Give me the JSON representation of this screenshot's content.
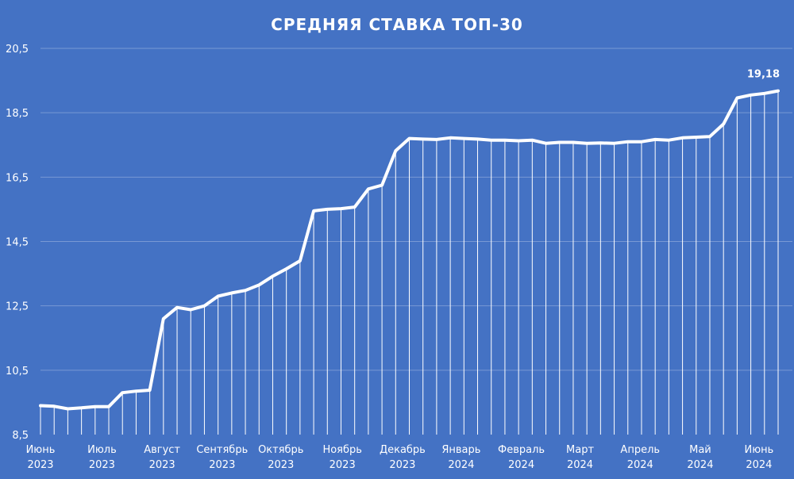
{
  "colors": {
    "background": "#4472C4",
    "line": "#FFFFFF"
  },
  "chart_data": {
    "type": "line",
    "title": "СРЕДНЯЯ СТАВКА ТОП-30",
    "xlabel": "",
    "ylabel": "",
    "ylim": [
      8.5,
      20.5
    ],
    "yticks": [
      "8,5",
      "10,5",
      "12,5",
      "14,5",
      "16,5",
      "18,5",
      "20,5"
    ],
    "ytick_values": [
      8.5,
      10.5,
      12.5,
      14.5,
      16.5,
      18.5,
      20.5
    ],
    "grid": true,
    "legend": "none",
    "x_month_labels": [
      {
        "month": "Июнь",
        "year": "2023",
        "index": 0
      },
      {
        "month": "Июль",
        "year": "2023",
        "index": 4.5
      },
      {
        "month": "Август",
        "year": "2023",
        "index": 8.9
      },
      {
        "month": "Сентябрь",
        "year": "2023",
        "index": 13.3
      },
      {
        "month": "Октябрь",
        "year": "2023",
        "index": 17.6
      },
      {
        "month": "Ноябрь",
        "year": "2023",
        "index": 22.1
      },
      {
        "month": "Декабрь",
        "year": "2023",
        "index": 26.5
      },
      {
        "month": "Январь",
        "year": "2024",
        "index": 30.8
      },
      {
        "month": "Февраль",
        "year": "2024",
        "index": 35.2
      },
      {
        "month": "Март",
        "year": "2024",
        "index": 39.5
      },
      {
        "month": "Апрель",
        "year": "2024",
        "index": 43.9
      },
      {
        "month": "Май",
        "year": "2024",
        "index": 48.3
      },
      {
        "month": "Июнь",
        "year": "2024",
        "index": 52.6
      }
    ],
    "series": [
      {
        "values": [
          9.4,
          9.38,
          9.3,
          9.33,
          9.37,
          9.37,
          9.8,
          9.85,
          9.88,
          12.1,
          12.45,
          12.38,
          12.5,
          12.8,
          12.9,
          12.98,
          13.15,
          13.42,
          13.65,
          13.9,
          15.45,
          15.5,
          15.52,
          15.57,
          16.13,
          16.25,
          17.32,
          17.7,
          17.68,
          17.67,
          17.72,
          17.7,
          17.68,
          17.65,
          17.65,
          17.63,
          17.65,
          17.55,
          17.58,
          17.58,
          17.55,
          17.56,
          17.55,
          17.6,
          17.6,
          17.67,
          17.65,
          17.72,
          17.74,
          17.76,
          18.15,
          18.96,
          19.05,
          19.1,
          19.18
        ],
        "data_labels": [
          {
            "index": 54,
            "text": "19,18"
          }
        ]
      }
    ]
  }
}
